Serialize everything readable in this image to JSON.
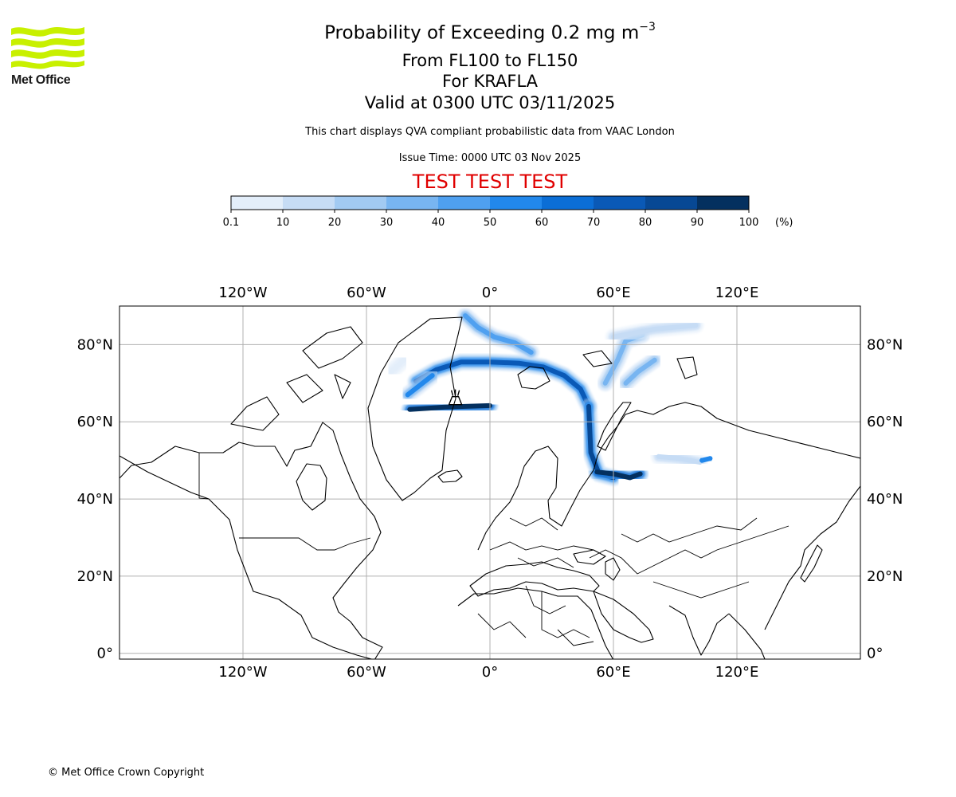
{
  "branding": {
    "logo_icon": "met-office-wave-logo",
    "logo_text": "Met Office",
    "logo_color": "#c8f000"
  },
  "title": {
    "main": "Probability of Exceeding 0.2 mg m",
    "main_exponent": "−3",
    "flight_levels": "From FL100 to FL150",
    "volcano": "For KRAFLA",
    "valid": "Valid at 0300 UTC 03/11/2025"
  },
  "notes": {
    "source": "This chart displays QVA compliant probabilistic data from VAAC London",
    "issue_time": "Issue Time: 0000 UTC 03 Nov 2025",
    "test_banner": "TEST TEST TEST",
    "test_color": "#e00000"
  },
  "colorbar": {
    "ticks": [
      "0.1",
      "10",
      "20",
      "30",
      "40",
      "50",
      "60",
      "70",
      "80",
      "90",
      "100"
    ],
    "unit": "(%)",
    "colors": [
      "#e3eefa",
      "#c6dcf5",
      "#a2caf2",
      "#78b5f1",
      "#4fa0f0",
      "#2288ec",
      "#0b6ed6",
      "#0a59b6",
      "#074894",
      "#04305f"
    ]
  },
  "map": {
    "projection": "equirectangular",
    "lon_range": [
      -180,
      180
    ],
    "lat_range": [
      -1.5,
      90
    ],
    "lon_ticks": [
      "120°W",
      "60°W",
      "0°",
      "60°E",
      "120°E"
    ],
    "lon_values": [
      -120,
      -60,
      0,
      60,
      120
    ],
    "lat_ticks": [
      "80°N",
      "60°N",
      "40°N",
      "20°N",
      "0°"
    ],
    "lat_values": [
      80,
      60,
      40,
      20,
      0
    ],
    "volcano_marker": {
      "name": "KRAFLA",
      "lon": -16.8,
      "lat": 65.7,
      "icon": "volcano-icon"
    },
    "plume_bands": [
      {
        "name": "iceland-jet",
        "percent": 90,
        "points": [
          [
            -39,
            63.2
          ],
          [
            -30,
            63.5
          ],
          [
            -22,
            63.8
          ],
          [
            -12,
            64
          ],
          [
            0,
            64.2
          ]
        ]
      },
      {
        "name": "greenland-sea-arc",
        "percent": 75,
        "points": [
          [
            -36,
            70.5
          ],
          [
            -26,
            73.5
          ],
          [
            -14,
            75.5
          ],
          [
            0,
            75.5
          ],
          [
            14,
            75.2
          ],
          [
            26,
            74.2
          ],
          [
            36,
            72
          ],
          [
            44,
            68.5
          ],
          [
            48,
            64
          ]
        ]
      },
      {
        "name": "southward-tail",
        "percent": 85,
        "points": [
          [
            48,
            64
          ],
          [
            48.5,
            58
          ],
          [
            49,
            52
          ],
          [
            53,
            46.5
          ],
          [
            60,
            45.5
          ]
        ]
      },
      {
        "name": "kazakh-core",
        "percent": 95,
        "points": [
          [
            52,
            47
          ],
          [
            60,
            46.5
          ],
          [
            68,
            45.5
          ],
          [
            73,
            46.5
          ]
        ]
      },
      {
        "name": "east-greenland-patch",
        "percent": 50,
        "points": [
          [
            -40,
            67
          ],
          [
            -34,
            69.5
          ],
          [
            -28,
            72
          ]
        ]
      },
      {
        "name": "svalbard-plume",
        "percent": 45,
        "points": [
          [
            -12,
            87.5
          ],
          [
            -6,
            84.5
          ],
          [
            2,
            82
          ],
          [
            12,
            80.5
          ],
          [
            20,
            78
          ]
        ]
      },
      {
        "name": "barents-branch",
        "percent": 35,
        "points": [
          [
            56,
            70
          ],
          [
            62,
            76
          ],
          [
            66,
            81
          ],
          [
            74,
            82.5
          ]
        ]
      },
      {
        "name": "kara-sea-patch",
        "percent": 30,
        "points": [
          [
            66,
            70
          ],
          [
            72,
            73
          ],
          [
            80,
            76
          ]
        ]
      },
      {
        "name": "arctic-north-streak",
        "percent": 15,
        "points": [
          [
            60,
            82
          ],
          [
            80,
            84
          ],
          [
            100,
            85
          ]
        ]
      },
      {
        "name": "mongolia-streak",
        "percent": 15,
        "points": [
          [
            82,
            51
          ],
          [
            92,
            50.5
          ],
          [
            102,
            49.5
          ]
        ]
      },
      {
        "name": "mongolia-spot",
        "percent": 55,
        "points": [
          [
            103,
            50
          ],
          [
            107,
            50.5
          ]
        ]
      },
      {
        "name": "labrador-trace",
        "percent": 5,
        "points": [
          [
            -48,
            73
          ],
          [
            -42,
            76
          ]
        ]
      }
    ]
  },
  "copyright": "© Met Office Crown Copyright"
}
